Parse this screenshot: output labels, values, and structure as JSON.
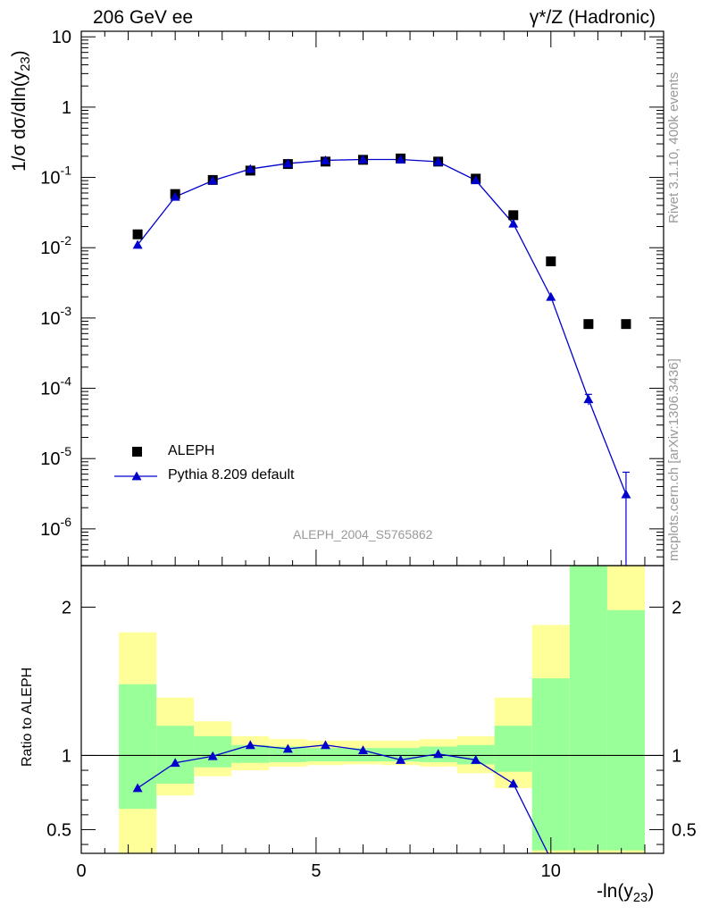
{
  "header": {
    "left": "206 GeV ee",
    "right": "γ*/Z (Hadronic)"
  },
  "side_labels": {
    "rivet": "Rivet 3.1.10,  400k events",
    "mcplots": "mcplots.cern.ch [arXiv:1306.3436]"
  },
  "analysis_id": "ALEPH_2004_S5765862",
  "chart_data": [
    {
      "type": "scatter",
      "ylabel": "1/σ  dσ/dln(y23)",
      "ylabel_parts": {
        "main": "1/σ  dσ/dln(y",
        "sub": "23",
        "end": ")"
      },
      "xlim": [
        0,
        12.4
      ],
      "ylim": [
        3e-07,
        12
      ],
      "yscale": "log",
      "y_tick_labels": [
        {
          "base": "10",
          "exp": "-6"
        },
        {
          "base": "10",
          "exp": "-5"
        },
        {
          "base": "10",
          "exp": "-4"
        },
        {
          "base": "10",
          "exp": "-3"
        },
        {
          "base": "10",
          "exp": "-2"
        },
        {
          "base": "10",
          "exp": "-1"
        },
        {
          "base": "1",
          "exp": ""
        },
        {
          "base": "10",
          "exp": ""
        }
      ],
      "legend_position": "bottom-left",
      "series": [
        {
          "name": "ALEPH",
          "marker": "square",
          "color": "#000000",
          "x": [
            1.2,
            2.0,
            2.8,
            3.6,
            4.4,
            5.2,
            6.0,
            6.8,
            7.6,
            8.4,
            9.2,
            10.0,
            10.8,
            11.6
          ],
          "y": [
            0.0155,
            0.058,
            0.092,
            0.125,
            0.155,
            0.168,
            0.178,
            0.186,
            0.168,
            0.096,
            0.029,
            0.0064,
            0.00082,
            0.00082
          ]
        },
        {
          "name": "Pythia 8.209 default",
          "marker": "triangle",
          "color": "#0000cc",
          "x": [
            1.2,
            2.0,
            2.8,
            3.6,
            4.4,
            5.2,
            6.0,
            6.8,
            7.6,
            8.4,
            9.2,
            10.0,
            10.8,
            11.6
          ],
          "y": [
            0.011,
            0.053,
            0.09,
            0.132,
            0.158,
            0.175,
            0.18,
            0.18,
            0.167,
            0.091,
            0.022,
            0.002,
            7e-05,
            3.1e-06
          ],
          "yerr_low": [
            0,
            0,
            0,
            0,
            0,
            0,
            0,
            0,
            0,
            0,
            0,
            0,
            1.2e-05,
            3.1e-06
          ],
          "yerr_high": [
            0,
            0,
            0,
            0,
            0,
            0,
            0,
            0,
            0,
            0,
            0,
            0,
            1.2e-05,
            3.3e-06
          ]
        }
      ]
    },
    {
      "type": "scatter",
      "ylabel": "Ratio to ALEPH",
      "xlabel": "-ln(y23)",
      "xlabel_parts": {
        "main": "-ln(y",
        "sub": "23",
        "end": ")"
      },
      "xlim": [
        0,
        12.4
      ],
      "ylim": [
        0.34,
        2.28
      ],
      "x_ticks": [
        "0",
        "5",
        "10"
      ],
      "y_ticks": [
        "0.5",
        "1",
        "2"
      ],
      "reference_line": 1,
      "bands": {
        "edges": [
          0.8,
          1.6,
          2.4,
          3.2,
          4.0,
          4.8,
          5.6,
          6.4,
          7.2,
          8.0,
          8.8,
          9.6,
          10.4,
          11.2,
          12.0
        ],
        "green_low": [
          0.64,
          0.81,
          0.92,
          0.95,
          0.955,
          0.96,
          0.96,
          0.96,
          0.955,
          0.94,
          0.89,
          0.36,
          0.36,
          0.36
        ],
        "green_high": [
          1.48,
          1.2,
          1.13,
          1.07,
          1.06,
          1.05,
          1.05,
          1.05,
          1.06,
          1.07,
          1.2,
          1.52,
          2.28,
          1.98
        ],
        "yellow_low": [
          0.34,
          0.73,
          0.86,
          0.9,
          0.925,
          0.935,
          0.94,
          0.935,
          0.925,
          0.88,
          0.78,
          0.34,
          0.34,
          0.34
        ],
        "yellow_high": [
          1.83,
          1.39,
          1.23,
          1.13,
          1.11,
          1.1,
          1.1,
          1.1,
          1.11,
          1.13,
          1.39,
          1.88,
          2.28,
          2.28
        ],
        "green_color": "#99ff99",
        "yellow_color": "#ffff99"
      },
      "series": [
        {
          "name": "Pythia 8.209 default",
          "color": "#0000cc",
          "x": [
            1.2,
            2.0,
            2.8,
            3.6,
            4.4,
            5.2,
            6.0,
            6.8,
            7.6,
            8.4,
            9.2,
            10.0
          ],
          "y": [
            0.78,
            0.95,
            0.995,
            1.07,
            1.045,
            1.07,
            1.035,
            0.97,
            1.01,
            0.97,
            0.81,
            0.3
          ]
        }
      ]
    }
  ]
}
